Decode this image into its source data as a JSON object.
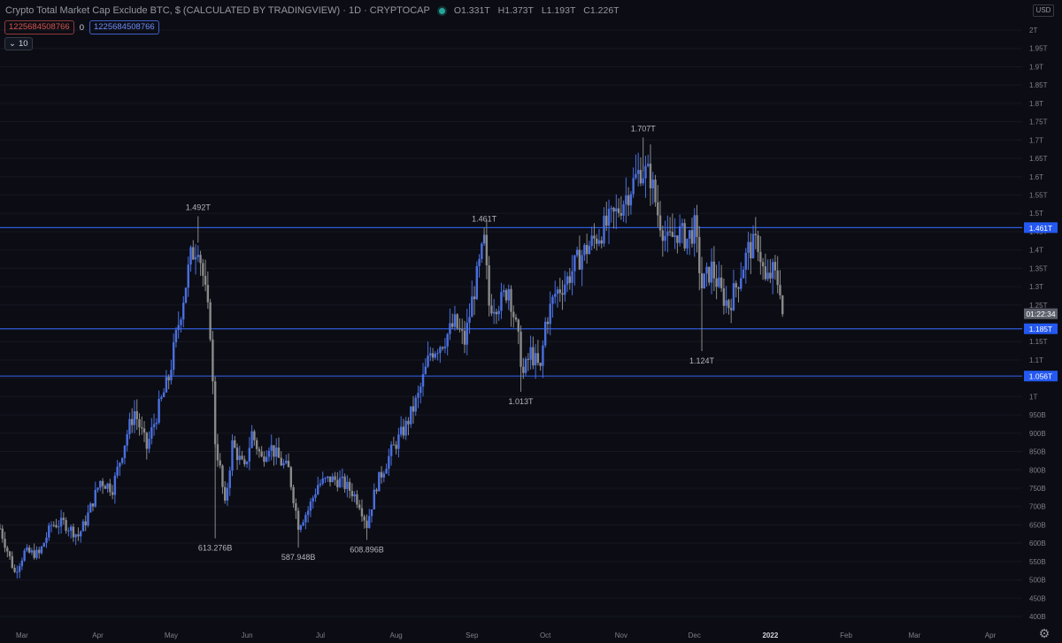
{
  "header": {
    "title": "Crypto Total Market Cap Exclude BTC, $ (CALCULATED BY TRADINGVIEW) · 1D · CRYPTOCAP",
    "open": "O1.331T",
    "high": "H1.373T",
    "low": "L1.193T",
    "close": "C1.226T",
    "status_color": "#26a69a"
  },
  "indicators": {
    "red_value": "1225684508766",
    "zero": "0",
    "blue_value": "1225684508766",
    "collapse_label": "10"
  },
  "currency_button": "USD",
  "settings_icon": "gear-icon",
  "colors": {
    "background": "#0c0d14",
    "candle": "#4a6fe0",
    "candle_down": "#8a8a8a",
    "level_line": "#2e5bd9",
    "label_bg": "#2458f0",
    "axis_text": "#7d808a"
  },
  "chart_data": {
    "type": "candlestick",
    "title": "Crypto Total Market Cap Exclude BTC, $ (CALCULATED BY TRADINGVIEW) · 1D · CRYPTOCAP",
    "interval": "1D",
    "currency": "USD",
    "y_axis_position": "right",
    "ylim": [
      390,
      2030
    ],
    "y_units": "billion USD",
    "y_ticks": [
      {
        "v": 2000,
        "label": "2T"
      },
      {
        "v": 1950,
        "label": "1.95T"
      },
      {
        "v": 1900,
        "label": "1.9T"
      },
      {
        "v": 1850,
        "label": "1.85T"
      },
      {
        "v": 1800,
        "label": "1.8T"
      },
      {
        "v": 1750,
        "label": "1.75T"
      },
      {
        "v": 1700,
        "label": "1.7T"
      },
      {
        "v": 1650,
        "label": "1.65T"
      },
      {
        "v": 1600,
        "label": "1.6T"
      },
      {
        "v": 1550,
        "label": "1.55T"
      },
      {
        "v": 1500,
        "label": "1.5T"
      },
      {
        "v": 1450,
        "label": "1.45T"
      },
      {
        "v": 1400,
        "label": "1.4T"
      },
      {
        "v": 1350,
        "label": "1.35T"
      },
      {
        "v": 1300,
        "label": "1.3T"
      },
      {
        "v": 1250,
        "label": "1.25T"
      },
      {
        "v": 1150,
        "label": "1.15T"
      },
      {
        "v": 1100,
        "label": "1.1T"
      },
      {
        "v": 1050,
        "label": "1.05T"
      },
      {
        "v": 1000,
        "label": "1T"
      },
      {
        "v": 950,
        "label": "950B"
      },
      {
        "v": 900,
        "label": "900B"
      },
      {
        "v": 850,
        "label": "850B"
      },
      {
        "v": 800,
        "label": "800B"
      },
      {
        "v": 750,
        "label": "750B"
      },
      {
        "v": 700,
        "label": "700B"
      },
      {
        "v": 650,
        "label": "650B"
      },
      {
        "v": 600,
        "label": "600B"
      },
      {
        "v": 550,
        "label": "550B"
      },
      {
        "v": 500,
        "label": "500B"
      },
      {
        "v": 450,
        "label": "450B"
      },
      {
        "v": 400,
        "label": "400B"
      }
    ],
    "x_ticks": [
      {
        "date": "2021-03-01",
        "label": "Mar"
      },
      {
        "date": "2021-04-01",
        "label": "Apr"
      },
      {
        "date": "2021-05-01",
        "label": "May"
      },
      {
        "date": "2021-06-01",
        "label": "Jun"
      },
      {
        "date": "2021-07-01",
        "label": "Jul"
      },
      {
        "date": "2021-08-01",
        "label": "Aug"
      },
      {
        "date": "2021-09-01",
        "label": "Sep"
      },
      {
        "date": "2021-10-01",
        "label": "Oct"
      },
      {
        "date": "2021-11-01",
        "label": "Nov"
      },
      {
        "date": "2021-12-01",
        "label": "Dec"
      },
      {
        "date": "2022-01-01",
        "label": "2022"
      },
      {
        "date": "2022-02-01",
        "label": "Feb"
      },
      {
        "date": "2022-03-01",
        "label": "Mar"
      },
      {
        "date": "2022-04-01",
        "label": "Apr"
      }
    ],
    "x_range": [
      "2021-02-20",
      "2022-04-14"
    ],
    "horizontal_levels": [
      {
        "value": 1461,
        "label": "1.461T"
      },
      {
        "value": 1185,
        "label": "1.185T"
      },
      {
        "value": 1056,
        "label": "1.056T"
      }
    ],
    "countdown": {
      "value": 1226,
      "label": "01:22:34"
    },
    "annotations": [
      {
        "date": "2021-05-12",
        "value": 1492,
        "label": "1.492T",
        "position": "above"
      },
      {
        "date": "2021-05-19",
        "value": 613.276,
        "label": "613.276B",
        "position": "below"
      },
      {
        "date": "2021-06-22",
        "value": 587.948,
        "label": "587.948B",
        "position": "below"
      },
      {
        "date": "2021-07-20",
        "value": 608.896,
        "label": "608.896B",
        "position": "below"
      },
      {
        "date": "2021-09-06",
        "value": 1461,
        "label": "1.461T",
        "position": "above"
      },
      {
        "date": "2021-09-21",
        "value": 1013,
        "label": "1.013T",
        "position": "below"
      },
      {
        "date": "2021-11-10",
        "value": 1707,
        "label": "1.707T",
        "position": "above"
      },
      {
        "date": "2021-12-04",
        "value": 1124,
        "label": "1.124T",
        "position": "below"
      }
    ],
    "price_path": [
      [
        "2021-02-20",
        640
      ],
      [
        "2021-02-26",
        520
      ],
      [
        "2021-03-02",
        575
      ],
      [
        "2021-03-08",
        570
      ],
      [
        "2021-03-13",
        650
      ],
      [
        "2021-03-18",
        655
      ],
      [
        "2021-03-24",
        620
      ],
      [
        "2021-03-27",
        660
      ],
      [
        "2021-04-02",
        770
      ],
      [
        "2021-04-07",
        750
      ],
      [
        "2021-04-13",
        900
      ],
      [
        "2021-04-16",
        960
      ],
      [
        "2021-04-19",
        900
      ],
      [
        "2021-04-21",
        860
      ],
      [
        "2021-04-25",
        950
      ],
      [
        "2021-04-30",
        1050
      ],
      [
        "2021-05-04",
        1200
      ],
      [
        "2021-05-09",
        1380
      ],
      [
        "2021-05-12",
        1420
      ],
      [
        "2021-05-14",
        1330
      ],
      [
        "2021-05-17",
        1180
      ],
      [
        "2021-05-19",
        880
      ],
      [
        "2021-05-21",
        800
      ],
      [
        "2021-05-23",
        700
      ],
      [
        "2021-05-26",
        870
      ],
      [
        "2021-05-31",
        800
      ],
      [
        "2021-06-03",
        900
      ],
      [
        "2021-06-07",
        830
      ],
      [
        "2021-06-10",
        870
      ],
      [
        "2021-06-15",
        820
      ],
      [
        "2021-06-18",
        800
      ],
      [
        "2021-06-22",
        650
      ],
      [
        "2021-06-26",
        690
      ],
      [
        "2021-06-30",
        760
      ],
      [
        "2021-07-05",
        775
      ],
      [
        "2021-07-09",
        770
      ],
      [
        "2021-07-14",
        740
      ],
      [
        "2021-07-17",
        710
      ],
      [
        "2021-07-20",
        650
      ],
      [
        "2021-07-24",
        760
      ],
      [
        "2021-07-30",
        850
      ],
      [
        "2021-08-05",
        920
      ],
      [
        "2021-08-10",
        1000
      ],
      [
        "2021-08-15",
        1120
      ],
      [
        "2021-08-20",
        1150
      ],
      [
        "2021-08-25",
        1200
      ],
      [
        "2021-08-29",
        1150
      ],
      [
        "2021-09-01",
        1260
      ],
      [
        "2021-09-06",
        1420
      ],
      [
        "2021-09-08",
        1250
      ],
      [
        "2021-09-13",
        1260
      ],
      [
        "2021-09-16",
        1300
      ],
      [
        "2021-09-20",
        1150
      ],
      [
        "2021-09-22",
        1060
      ],
      [
        "2021-09-25",
        1120
      ],
      [
        "2021-09-29",
        1070
      ],
      [
        "2021-10-01",
        1200
      ],
      [
        "2021-10-05",
        1280
      ],
      [
        "2021-10-10",
        1320
      ],
      [
        "2021-10-15",
        1380
      ],
      [
        "2021-10-20",
        1420
      ],
      [
        "2021-10-25",
        1460
      ],
      [
        "2021-10-30",
        1500
      ],
      [
        "2021-11-04",
        1560
      ],
      [
        "2021-11-09",
        1620
      ],
      [
        "2021-11-13",
        1600
      ],
      [
        "2021-11-16",
        1500
      ],
      [
        "2021-11-20",
        1420
      ],
      [
        "2021-11-24",
        1450
      ],
      [
        "2021-11-28",
        1430
      ],
      [
        "2021-12-01",
        1460
      ],
      [
        "2021-12-04",
        1300
      ],
      [
        "2021-12-08",
        1350
      ],
      [
        "2021-12-12",
        1280
      ],
      [
        "2021-12-15",
        1250
      ],
      [
        "2021-12-18",
        1300
      ],
      [
        "2021-12-23",
        1400
      ],
      [
        "2021-12-27",
        1420
      ],
      [
        "2021-12-30",
        1310
      ],
      [
        "2022-01-02",
        1340
      ],
      [
        "2022-01-05",
        1300
      ],
      [
        "2022-01-06",
        1226
      ]
    ]
  }
}
